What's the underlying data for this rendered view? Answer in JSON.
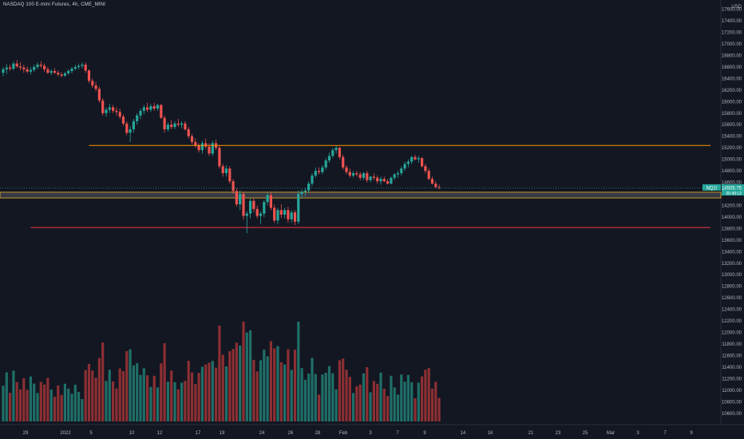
{
  "header": {
    "title": "NASDAQ 100 E-mini Futures, 4h, CME_MINI"
  },
  "price_axis": {
    "currency": "USD",
    "ticks": [
      "17600.00",
      "17400.00",
      "17200.00",
      "17000.00",
      "16800.00",
      "16600.00",
      "16400.00",
      "16200.00",
      "16000.00",
      "15800.00",
      "15600.00",
      "15400.00",
      "15200.00",
      "15000.00",
      "14800.00",
      "14600.00",
      "14400.00",
      "14200.00",
      "14000.00",
      "13800.00",
      "13600.00",
      "13400.00",
      "13200.00",
      "13000.00",
      "12800.00",
      "12600.00",
      "12400.00",
      "12200.00",
      "12000.00",
      "11800.00",
      "11600.00",
      "11400.00",
      "11200.00",
      "11000.00",
      "10800.00",
      "10600.00"
    ],
    "last_price_label": "14505.75",
    "symbol_label": "NQ1!",
    "countdown_label": "00:49:12"
  },
  "time_axis": {
    "ticks": [
      "29",
      "2022",
      "5",
      "10",
      "12",
      "17",
      "19",
      "24",
      "26",
      "28",
      "Feb",
      "3",
      "7",
      "9",
      "14",
      "16",
      "21",
      "23",
      "25",
      "Mar",
      "3",
      "7",
      "9"
    ]
  },
  "colors": {
    "up": "#26a69a",
    "down": "#ef5350",
    "up_volume": "#1f6f68",
    "down_volume": "#8c2f33",
    "resistance": "#ff9800",
    "support": "#f23645",
    "zone_fill": "#787b86",
    "zone_border": "#f0b429",
    "background": "#131722"
  },
  "chart_data": {
    "type": "candlestick",
    "timeframe": "4h",
    "ylim": [
      10500,
      17650
    ],
    "grid": false,
    "candles": [
      [
        16500,
        16600,
        16440,
        16560
      ],
      [
        16560,
        16650,
        16480,
        16590
      ],
      [
        16590,
        16640,
        16530,
        16570
      ],
      [
        16570,
        16700,
        16540,
        16660
      ],
      [
        16660,
        16720,
        16580,
        16610
      ],
      [
        16610,
        16680,
        16540,
        16590
      ],
      [
        16590,
        16640,
        16500,
        16560
      ],
      [
        16560,
        16610,
        16490,
        16520
      ],
      [
        16520,
        16600,
        16470,
        16550
      ],
      [
        16550,
        16640,
        16510,
        16600
      ],
      [
        16600,
        16680,
        16560,
        16640
      ],
      [
        16640,
        16700,
        16580,
        16620
      ],
      [
        16620,
        16660,
        16520,
        16560
      ],
      [
        16560,
        16600,
        16480,
        16500
      ],
      [
        16500,
        16560,
        16460,
        16530
      ],
      [
        16530,
        16580,
        16480,
        16500
      ],
      [
        16500,
        16540,
        16440,
        16470
      ],
      [
        16470,
        16510,
        16420,
        16450
      ],
      [
        16450,
        16520,
        16430,
        16490
      ],
      [
        16490,
        16560,
        16460,
        16530
      ],
      [
        16530,
        16600,
        16490,
        16570
      ],
      [
        16570,
        16640,
        16540,
        16600
      ],
      [
        16600,
        16660,
        16560,
        16620
      ],
      [
        16620,
        16680,
        16580,
        16640
      ],
      [
        16640,
        16680,
        16500,
        16540
      ],
      [
        16540,
        16560,
        16320,
        16360
      ],
      [
        16360,
        16400,
        16240,
        16280
      ],
      [
        16280,
        16340,
        16180,
        16220
      ],
      [
        16220,
        16260,
        15980,
        16020
      ],
      [
        16020,
        16060,
        15760,
        15800
      ],
      [
        15800,
        15900,
        15740,
        15860
      ],
      [
        15860,
        15960,
        15800,
        15900
      ],
      [
        15900,
        15940,
        15800,
        15840
      ],
      [
        15840,
        15900,
        15760,
        15820
      ],
      [
        15820,
        15880,
        15700,
        15740
      ],
      [
        15740,
        15780,
        15580,
        15620
      ],
      [
        15620,
        15660,
        15420,
        15460
      ],
      [
        15460,
        15580,
        15300,
        15520
      ],
      [
        15520,
        15700,
        15460,
        15660
      ],
      [
        15660,
        15800,
        15600,
        15760
      ],
      [
        15760,
        15880,
        15700,
        15840
      ],
      [
        15840,
        15940,
        15780,
        15900
      ],
      [
        15900,
        15980,
        15820,
        15860
      ],
      [
        15860,
        15960,
        15820,
        15920
      ],
      [
        15920,
        15980,
        15840,
        15880
      ],
      [
        15880,
        15960,
        15840,
        15940
      ],
      [
        15940,
        15960,
        15700,
        15720
      ],
      [
        15720,
        15760,
        15460,
        15520
      ],
      [
        15520,
        15640,
        15480,
        15600
      ],
      [
        15600,
        15680,
        15520,
        15560
      ],
      [
        15560,
        15660,
        15520,
        15620
      ],
      [
        15620,
        15700,
        15560,
        15600
      ],
      [
        15600,
        15660,
        15540,
        15620
      ],
      [
        15620,
        15660,
        15500,
        15520
      ],
      [
        15520,
        15560,
        15360,
        15400
      ],
      [
        15400,
        15440,
        15260,
        15300
      ],
      [
        15300,
        15360,
        15200,
        15240
      ],
      [
        15240,
        15280,
        15120,
        15160
      ],
      [
        15160,
        15320,
        15100,
        15280
      ],
      [
        15280,
        15360,
        15180,
        15220
      ],
      [
        15220,
        15280,
        15060,
        15100
      ],
      [
        15100,
        15320,
        15060,
        15280
      ],
      [
        15280,
        15340,
        15160,
        15200
      ],
      [
        15200,
        15240,
        14840,
        14880
      ],
      [
        14880,
        14920,
        14700,
        14760
      ],
      [
        14760,
        14900,
        14700,
        14840
      ],
      [
        14840,
        14880,
        14580,
        14620
      ],
      [
        14620,
        14660,
        14400,
        14450
      ],
      [
        14450,
        14500,
        14180,
        14220
      ],
      [
        14220,
        14460,
        14120,
        14400
      ],
      [
        14400,
        14440,
        13960,
        14020
      ],
      [
        14020,
        14100,
        13720,
        14060
      ],
      [
        14060,
        14320,
        13980,
        14280
      ],
      [
        14280,
        14320,
        14080,
        14140
      ],
      [
        14140,
        14200,
        13980,
        14020
      ],
      [
        14020,
        14100,
        13880,
        14060
      ],
      [
        14060,
        14300,
        14000,
        14260
      ],
      [
        14260,
        14420,
        14200,
        14380
      ],
      [
        14380,
        14440,
        14120,
        14160
      ],
      [
        14160,
        14220,
        13900,
        13940
      ],
      [
        13940,
        14160,
        13880,
        14120
      ],
      [
        14120,
        14220,
        13980,
        14040
      ],
      [
        14040,
        14160,
        13980,
        14120
      ],
      [
        14120,
        14180,
        13900,
        13960
      ],
      [
        13960,
        14120,
        13900,
        14080
      ],
      [
        14080,
        14120,
        13860,
        13920
      ],
      [
        13920,
        14460,
        13880,
        14400
      ],
      [
        14400,
        14480,
        14320,
        14440
      ],
      [
        14440,
        14500,
        14360,
        14460
      ],
      [
        14460,
        14620,
        14420,
        14580
      ],
      [
        14580,
        14760,
        14540,
        14720
      ],
      [
        14720,
        14860,
        14680,
        14800
      ],
      [
        14800,
        14860,
        14740,
        14780
      ],
      [
        14780,
        14900,
        14740,
        14860
      ],
      [
        14860,
        15020,
        14820,
        14980
      ],
      [
        14980,
        15120,
        14940,
        15060
      ],
      [
        15060,
        15200,
        15020,
        15160
      ],
      [
        15160,
        15240,
        15100,
        15200
      ],
      [
        15200,
        15220,
        15000,
        15040
      ],
      [
        15040,
        15080,
        14820,
        14860
      ],
      [
        14860,
        14900,
        14740,
        14780
      ],
      [
        14780,
        14840,
        14680,
        14720
      ],
      [
        14720,
        14800,
        14680,
        14760
      ],
      [
        14760,
        14800,
        14700,
        14740
      ],
      [
        14740,
        14780,
        14640,
        14680
      ],
      [
        14680,
        14780,
        14640,
        14760
      ],
      [
        14760,
        14800,
        14600,
        14640
      ],
      [
        14640,
        14720,
        14600,
        14700
      ],
      [
        14700,
        14760,
        14640,
        14680
      ],
      [
        14680,
        14720,
        14580,
        14620
      ],
      [
        14620,
        14700,
        14560,
        14660
      ],
      [
        14660,
        14700,
        14600,
        14620
      ],
      [
        14620,
        14660,
        14560,
        14580
      ],
      [
        14580,
        14700,
        14560,
        14680
      ],
      [
        14680,
        14760,
        14640,
        14740
      ],
      [
        14740,
        14800,
        14680,
        14760
      ],
      [
        14760,
        14880,
        14720,
        14840
      ],
      [
        14840,
        14960,
        14800,
        14920
      ],
      [
        14920,
        15000,
        14860,
        14960
      ],
      [
        14960,
        15060,
        14920,
        15040
      ],
      [
        15040,
        15080,
        14980,
        15000
      ],
      [
        15000,
        15060,
        14940,
        15020
      ],
      [
        15020,
        15040,
        14860,
        14880
      ],
      [
        14880,
        14920,
        14760,
        14800
      ],
      [
        14800,
        14840,
        14640,
        14660
      ],
      [
        14660,
        14700,
        14560,
        14580
      ],
      [
        14580,
        14620,
        14500,
        14520
      ],
      [
        14520,
        14560,
        14480,
        14506
      ]
    ],
    "volume_ticks_note": "",
    "horizontal_levels": [
      {
        "price": 15240,
        "color": "#ff9800",
        "x_start_index": 25
      },
      {
        "price": 13820,
        "color": "#f23645",
        "x_start_index": 8
      }
    ],
    "zone": {
      "high": 14430,
      "low": 14330
    }
  }
}
